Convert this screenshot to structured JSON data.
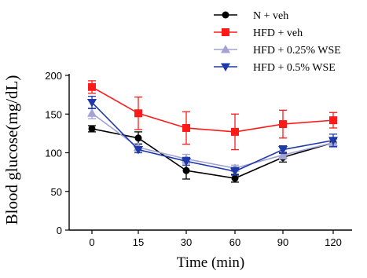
{
  "chart_data": {
    "type": "line",
    "xlabel": "Time (min)",
    "ylabel": "Blood glucose(mg/dL)",
    "x": [
      "0",
      "15",
      "30",
      "60",
      "90",
      "120"
    ],
    "ylim": [
      0,
      200
    ],
    "yticks": [
      0,
      50,
      100,
      150,
      200
    ],
    "grid": false,
    "legend_position": "top-right",
    "series": [
      {
        "name": "N + veh",
        "color": "#000000",
        "marker": "circle",
        "values": [
          131,
          119,
          77,
          67,
          94,
          113
        ],
        "errors": [
          4,
          8,
          11,
          5,
          6,
          5
        ]
      },
      {
        "name": "HFD + veh",
        "color": "#ff1a1a",
        "marker": "square",
        "values": [
          185,
          151,
          132,
          127,
          137,
          142
        ],
        "errors": [
          8,
          21,
          21,
          23,
          18,
          10
        ]
      },
      {
        "name": "HFD + 0.25% WSE",
        "color": "#a3a3d6",
        "marker": "triangle-up",
        "values": [
          151,
          107,
          92,
          80,
          97,
          113
        ],
        "errors": [
          7,
          5,
          6,
          4,
          5,
          6
        ]
      },
      {
        "name": "HFD + 0.5% WSE",
        "color": "#1f3aa8",
        "marker": "triangle-down",
        "values": [
          165,
          104,
          89,
          76,
          104,
          116
        ],
        "errors": [
          8,
          4,
          5,
          5,
          5,
          8
        ]
      }
    ]
  }
}
